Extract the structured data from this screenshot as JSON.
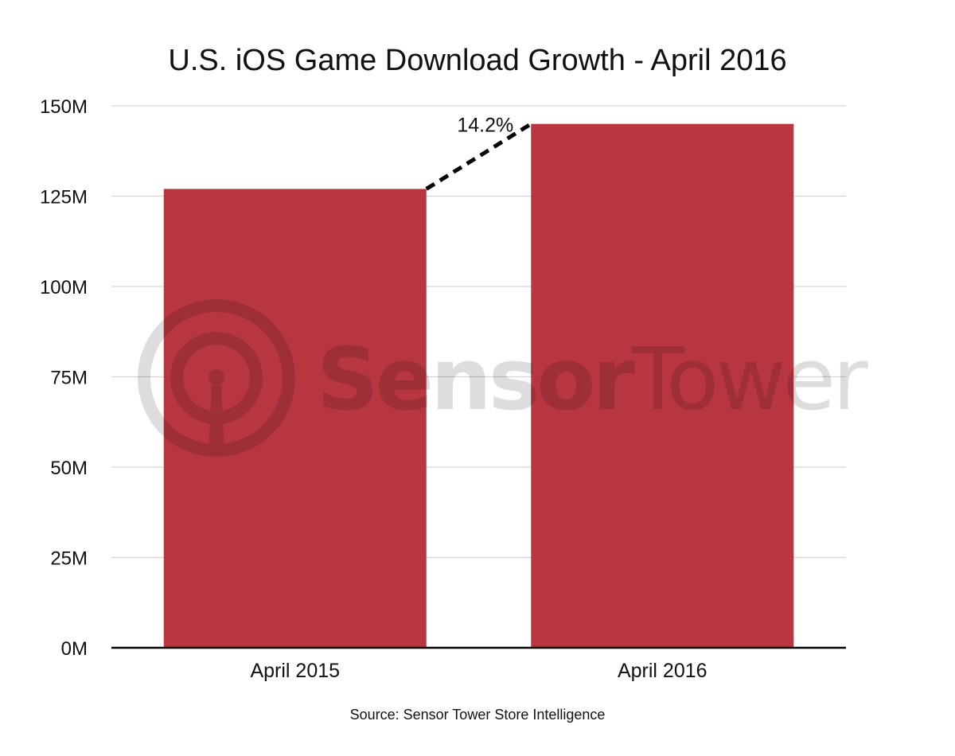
{
  "chart_data": {
    "type": "bar",
    "title": "U.S. iOS Game Download Growth - April 2016",
    "categories": [
      "April 2015",
      "April 2016"
    ],
    "values": [
      127,
      145
    ],
    "value_unit": "M",
    "ylim": [
      0,
      150
    ],
    "yticks": [
      0,
      25,
      50,
      75,
      100,
      125,
      150
    ],
    "ytick_labels": [
      "0M",
      "25M",
      "50M",
      "75M",
      "100M",
      "125M",
      "150M"
    ],
    "xlabel": "",
    "ylabel": "",
    "grid": true,
    "legend": "none",
    "bar_color": "#b73640",
    "annotation": {
      "text": "14.2%",
      "from_category": "April 2015",
      "to_category": "April 2016",
      "style": "dashed"
    },
    "source": "Source: Sensor Tower Store Intelligence"
  },
  "watermark": {
    "brand_bold": "Sensor",
    "brand_light": "Tower",
    "icon": "sensor-tower-logo-icon",
    "color": "#000000"
  }
}
